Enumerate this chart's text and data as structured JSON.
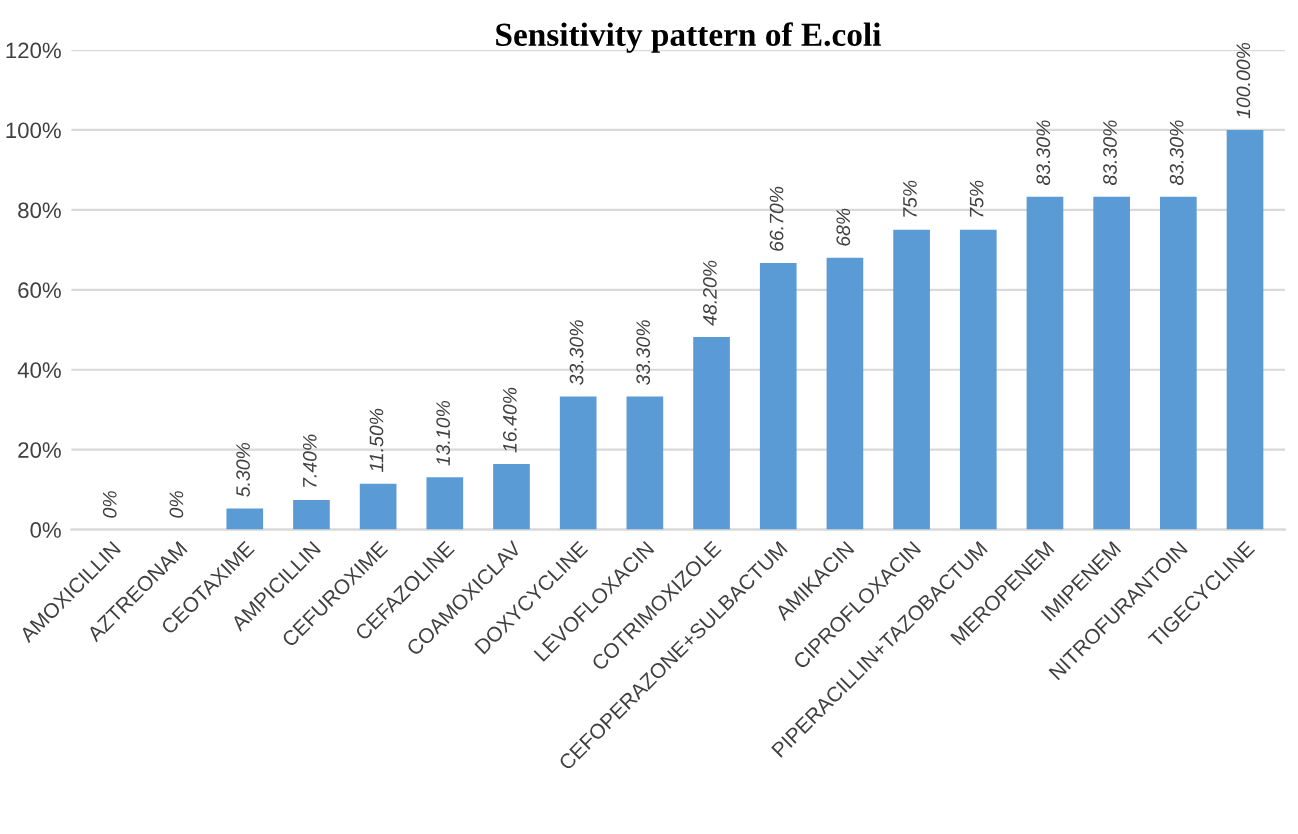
{
  "chart_data": {
    "type": "bar",
    "title": "Sensitivity pattern of E.coli",
    "categories": [
      "AMOXICILLIN",
      "AZTREONAM",
      "CEOTAXIME",
      "AMPICILLIN",
      "CEFUROXIME",
      "CEFAZOLINE",
      "COAMOXICLAV",
      "DOXYCYCLINE",
      "LEVOFLOXACIN",
      "COTRIMOXIZOLE",
      "CEFOPERAZONE+SULBACTUM",
      "AMIKACIN",
      "CIPROFLOXACIN",
      "PIPERACILLIN+TAZOBACTUM",
      "MEROPENEM",
      "IMIPENEM",
      "NITROFURANTOIN",
      "TIGECYCLINE"
    ],
    "values": [
      0,
      0,
      5.3,
      7.4,
      11.5,
      13.1,
      16.4,
      33.3,
      33.3,
      48.2,
      66.7,
      68,
      75,
      75,
      83.3,
      83.3,
      83.3,
      100
    ],
    "value_labels": [
      "0%",
      "0%",
      "5.30%",
      "7.40%",
      "11.50%",
      "13.10%",
      "16.40%",
      "33.30%",
      "33.30%",
      "48.20%",
      "66.70%",
      "68%",
      "75%",
      "75%",
      "83.30%",
      "83.30%",
      "83.30%",
      "100.00%"
    ],
    "color": "#5b9bd5",
    "ylim": [
      0,
      120
    ],
    "yticks": [
      {
        "value": 0,
        "label": "0%"
      },
      {
        "value": 20,
        "label": "20%"
      },
      {
        "value": 40,
        "label": "40%"
      },
      {
        "value": 60,
        "label": "60%"
      },
      {
        "value": 80,
        "label": "80%"
      },
      {
        "value": 100,
        "label": "100%"
      },
      {
        "value": 120,
        "label": "120%"
      }
    ],
    "grid": "y"
  }
}
